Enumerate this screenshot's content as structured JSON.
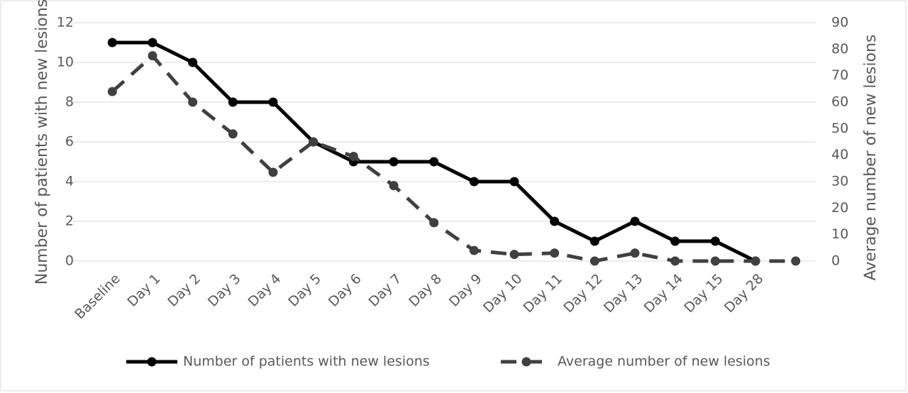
{
  "chart_data": {
    "type": "line",
    "y_label": "Number of patients with new lesions",
    "y2_label": "Average number of new lesions",
    "categories": [
      "Baseline",
      "Day 1",
      "Day 2",
      "Day 3",
      "Day 4",
      "Day 5",
      "Day 6",
      "Day 7",
      "Day 8",
      "Day 9",
      "Day 10",
      "Day 11",
      "Day 12",
      "Day 13",
      "Day 14",
      "Day 15",
      "Day 28",
      null
    ],
    "series": [
      {
        "name": "Number of patients with new lesions",
        "color": "#000000",
        "dash": false,
        "values": [
          11,
          11,
          10,
          8,
          8,
          6,
          5,
          5,
          5,
          4,
          4,
          2,
          1,
          2,
          1,
          1,
          0,
          null
        ]
      },
      {
        "name": "Average number of new lesions",
        "color": "#404040",
        "dash": true,
        "axis": "y2",
        "values": [
          64,
          77.5,
          60,
          48,
          33.5,
          45,
          39.5,
          28.5,
          14.5,
          4,
          2.5,
          3,
          0,
          3,
          0,
          0,
          0,
          0
        ]
      }
    ],
    "ylim": [
      0,
      12
    ],
    "yticks": [
      0,
      2,
      4,
      6,
      8,
      10,
      12
    ],
    "y2lim": [
      0,
      90
    ],
    "y2ticks": [
      0,
      10,
      20,
      30,
      40,
      50,
      60,
      70,
      80,
      90
    ],
    "grid": true,
    "legend": "bottom"
  }
}
